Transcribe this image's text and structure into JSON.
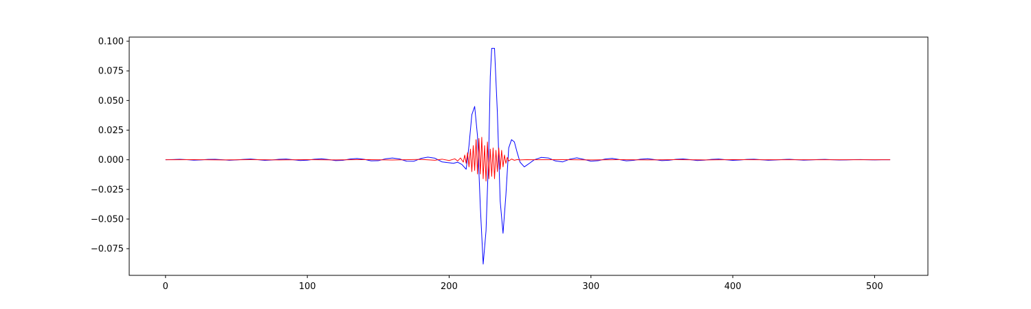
{
  "chart_data": {
    "type": "line",
    "title": "",
    "xlabel": "",
    "ylabel": "",
    "xlim": [
      -25.6,
      537.6
    ],
    "ylim": [
      -0.0975,
      0.1035
    ],
    "xticks": [
      0,
      100,
      200,
      300,
      400,
      500
    ],
    "xtick_labels": [
      "0",
      "100",
      "200",
      "300",
      "400",
      "500"
    ],
    "yticks": [
      -0.075,
      -0.05,
      -0.025,
      0.0,
      0.025,
      0.05,
      0.075,
      0.1
    ],
    "ytick_labels": [
      "−0.075",
      "−0.050",
      "−0.025",
      "0.000",
      "0.025",
      "0.050",
      "0.075",
      "0.100"
    ],
    "grid": false,
    "legend": "none",
    "series": [
      {
        "color": "#0000ff",
        "x": [
          0,
          5,
          10,
          15,
          20,
          25,
          30,
          35,
          40,
          45,
          50,
          55,
          60,
          65,
          70,
          75,
          80,
          85,
          90,
          95,
          100,
          105,
          110,
          115,
          120,
          125,
          130,
          135,
          140,
          145,
          150,
          155,
          160,
          165,
          170,
          175,
          180,
          185,
          190,
          195,
          200,
          203,
          206,
          209,
          212,
          214,
          216,
          218,
          220,
          222,
          224,
          226,
          228,
          229,
          230,
          232,
          234,
          236,
          238,
          240,
          242,
          244,
          246,
          248,
          250,
          253,
          256,
          260,
          265,
          270,
          275,
          280,
          285,
          290,
          295,
          300,
          305,
          310,
          315,
          320,
          325,
          330,
          335,
          340,
          345,
          350,
          355,
          360,
          365,
          370,
          375,
          380,
          385,
          390,
          395,
          400,
          405,
          410,
          415,
          420,
          425,
          430,
          435,
          440,
          445,
          450,
          455,
          460,
          465,
          470,
          475,
          480,
          485,
          490,
          495,
          500,
          505,
          511
        ],
        "y": [
          0.0,
          0.0002,
          0.0004,
          0.0001,
          -0.0003,
          -0.0001,
          0.0003,
          0.0004,
          0.0,
          -0.0004,
          -0.0001,
          0.0003,
          0.0006,
          0.0001,
          -0.0005,
          -0.0002,
          0.0004,
          0.0006,
          0.0,
          -0.0006,
          -0.0003,
          0.0005,
          0.0008,
          0.0002,
          -0.0007,
          -0.0005,
          0.0006,
          0.0011,
          0.0004,
          -0.0009,
          -0.0008,
          0.0008,
          0.0015,
          0.0007,
          -0.0012,
          -0.0013,
          0.0011,
          0.0022,
          0.0013,
          -0.0018,
          -0.0025,
          -0.003,
          -0.002,
          -0.004,
          -0.008,
          0.012,
          0.038,
          0.045,
          0.02,
          -0.04,
          -0.088,
          -0.06,
          0.01,
          0.07,
          0.094,
          0.094,
          0.04,
          -0.035,
          -0.062,
          -0.03,
          0.01,
          0.017,
          0.015,
          0.006,
          -0.002,
          -0.006,
          -0.0035,
          0.0,
          0.002,
          0.0015,
          -0.001,
          -0.0018,
          0.0005,
          0.0016,
          0.0003,
          -0.0012,
          -0.0008,
          0.0006,
          0.0012,
          0.0002,
          -0.0009,
          -0.0005,
          0.0005,
          0.0009,
          0.0001,
          -0.0007,
          -0.0004,
          0.0004,
          0.0007,
          0.0001,
          -0.0006,
          -0.0003,
          0.0003,
          0.0006,
          0.0,
          -0.0005,
          -0.0002,
          0.0003,
          0.0005,
          0.0,
          -0.0004,
          -0.0002,
          0.0002,
          0.0004,
          0.0,
          -0.0003,
          -0.0001,
          0.0002,
          0.0003,
          0.0,
          -0.0002,
          -0.0001,
          0.0001,
          0.0002,
          0.0,
          -0.0001,
          0.0,
          0.0
        ]
      },
      {
        "color": "#ff0000",
        "x": [
          0,
          20,
          40,
          60,
          80,
          100,
          120,
          140,
          160,
          180,
          190,
          195,
          200,
          204,
          206,
          208,
          210,
          211,
          212,
          213,
          214,
          215,
          216,
          217,
          218,
          219,
          220,
          221,
          222,
          223,
          224,
          225,
          226,
          227,
          228,
          229,
          230,
          231,
          232,
          233,
          234,
          235,
          236,
          237,
          238,
          239,
          240,
          241,
          242,
          244,
          246,
          248,
          250,
          255,
          260,
          280,
          300,
          320,
          340,
          360,
          380,
          400,
          420,
          440,
          460,
          480,
          500,
          511
        ],
        "y": [
          0.0,
          0.0001,
          -0.0001,
          0.0001,
          -0.0001,
          0.0001,
          -0.0001,
          0.0002,
          -0.0002,
          0.0003,
          -0.0004,
          0.0005,
          -0.0006,
          0.0008,
          -0.001,
          0.0015,
          -0.002,
          0.004,
          -0.003,
          0.006,
          -0.006,
          0.009,
          -0.01,
          0.012,
          -0.009,
          0.017,
          -0.012,
          0.018,
          -0.012,
          0.019,
          -0.016,
          0.012,
          -0.018,
          0.015,
          -0.016,
          0.009,
          -0.014,
          0.01,
          -0.016,
          0.008,
          -0.01,
          0.01,
          -0.008,
          0.008,
          -0.006,
          0.004,
          -0.003,
          0.002,
          -0.001,
          0.0006,
          -0.0004,
          0.0002,
          -0.0001,
          0.0001,
          0.0,
          0.0001,
          -0.0001,
          0.0001,
          -0.0001,
          0.0001,
          -0.0001,
          0.0001,
          0.0,
          0.0,
          0.0,
          0.0,
          0.0,
          0.0
        ]
      }
    ]
  }
}
